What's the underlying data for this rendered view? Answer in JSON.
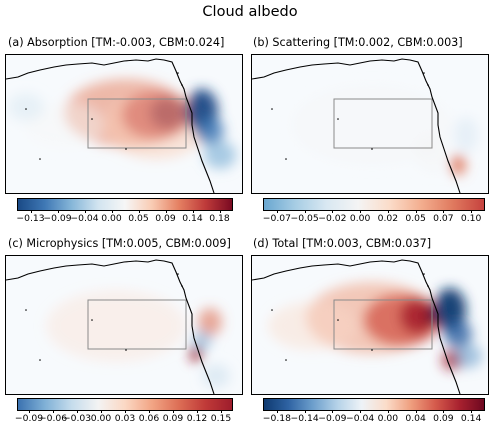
{
  "title": "Cloud albedo",
  "chart_data": [
    {
      "type": "heatmap",
      "panel": "(a)",
      "title": "(a)  Absorption [TM:-0.003, CBM:0.024]",
      "colorbar_ticks": [
        "−0.13",
        "−0.09",
        "−0.04",
        "0.00",
        "0.05",
        "0.09",
        "0.14",
        "0.18"
      ],
      "colorbar_range": [
        -0.18,
        0.18
      ],
      "colormap": [
        "#1a4a86",
        "#3f78b5",
        "#86b6d8",
        "#d2e4f0",
        "#f6f6f6",
        "#f9ccb4",
        "#e58163",
        "#bf3b3a",
        "#7a0a22"
      ]
    },
    {
      "type": "heatmap",
      "panel": "(b)",
      "title": "(b)  Scattering [TM:0.002, CBM:0.003]",
      "colorbar_ticks": [
        "−0.07",
        "−0.05",
        "−0.02",
        "0.00",
        "0.02",
        "0.05",
        "0.07",
        "0.10"
      ],
      "colorbar_range": [
        -0.08,
        0.115
      ],
      "colormap": [
        "#6aa7d0",
        "#a7cde4",
        "#d9e8f2",
        "#f4f4f4",
        "#fbdcc9",
        "#f3ae8f",
        "#e07a5f",
        "#c6423e"
      ]
    },
    {
      "type": "heatmap",
      "panel": "(c)",
      "title": "(c)  Microphysics [TM:0.005, CBM:0.009]",
      "colorbar_ticks": [
        "−0.09",
        "−0.06",
        "−0.03",
        "0.00",
        "0.03",
        "0.06",
        "0.09",
        "0.12",
        "0.15"
      ],
      "colorbar_range": [
        -0.105,
        0.155
      ],
      "colormap": [
        "#3b72b0",
        "#7fb0d6",
        "#c5dcec",
        "#f3f3f3",
        "#fbd8c4",
        "#f2a585",
        "#dd6f56",
        "#c03a38",
        "#9e1d2c"
      ]
    },
    {
      "type": "heatmap",
      "panel": "(d)",
      "title": "(d)  Total [TM:0.003, CBM:0.037]",
      "colorbar_ticks": [
        "−0.18",
        "−0.14",
        "−0.09",
        "−0.04",
        "0.00",
        "0.04",
        "0.09",
        "0.14"
      ],
      "colorbar_range": [
        -0.2,
        0.16
      ],
      "colormap": [
        "#0f3a70",
        "#2f63a3",
        "#6d9fcc",
        "#b5d2e8",
        "#eef3f7",
        "#fbdcc9",
        "#ef9f7f",
        "#d55b4c",
        "#a8212f",
        "#6e0820"
      ]
    }
  ]
}
